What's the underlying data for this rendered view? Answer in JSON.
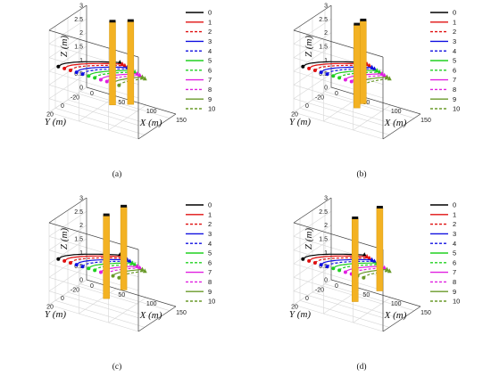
{
  "panel_labels": [
    "(a)",
    "(b)",
    "(c)",
    "(d)"
  ],
  "axis_labels": {
    "x": "X (m)",
    "y": "Y (m)",
    "z": "Z (m)"
  },
  "chart_data": [
    {
      "id": "a",
      "type": "line",
      "caption": "(a)",
      "xlabel": "X (m)",
      "ylabel": "Y (m)",
      "zlabel": "Z (m)",
      "xlim": [
        0,
        150
      ],
      "ylim": [
        -30,
        30
      ],
      "zlim": [
        0,
        3
      ],
      "xticks": [
        "0",
        "50",
        "100",
        "150"
      ],
      "yticks": [
        "-20",
        "0",
        "20"
      ],
      "zticks": [
        "0",
        "0.5",
        "1",
        "1.5",
        "2",
        "2.5",
        "3"
      ],
      "grid": true,
      "legend_position": "right",
      "series": [
        {
          "name": "0",
          "color": "#000000",
          "dash": "solid"
        },
        {
          "name": "1",
          "color": "#e01010",
          "dash": "solid"
        },
        {
          "name": "2",
          "color": "#e01010",
          "dash": "dashed"
        },
        {
          "name": "3",
          "color": "#1010e0",
          "dash": "solid"
        },
        {
          "name": "4",
          "color": "#1010e0",
          "dash": "dashed"
        },
        {
          "name": "5",
          "color": "#20d020",
          "dash": "solid"
        },
        {
          "name": "6",
          "color": "#20d020",
          "dash": "dashed"
        },
        {
          "name": "7",
          "color": "#e020e0",
          "dash": "solid"
        },
        {
          "name": "8",
          "color": "#e020e0",
          "dash": "dashed"
        },
        {
          "name": "9",
          "color": "#6a9a2a",
          "dash": "solid"
        },
        {
          "name": "10",
          "color": "#6a9a2a",
          "dash": "dashed"
        }
      ],
      "obstacles": [
        {
          "x": 75,
          "y": 0
        },
        {
          "x": 95,
          "y": -10
        }
      ]
    },
    {
      "id": "b",
      "type": "line",
      "caption": "(b)",
      "xlabel": "X (m)",
      "ylabel": "Y (m)",
      "zlabel": "Z (m)",
      "xlim": [
        0,
        150
      ],
      "ylim": [
        -30,
        30
      ],
      "zlim": [
        0,
        3
      ],
      "xticks": [
        "0",
        "50",
        "100",
        "150"
      ],
      "yticks": [
        "-20",
        "0",
        "20"
      ],
      "zticks": [
        "0",
        "0.5",
        "1",
        "1.5",
        "2",
        "2.5",
        "3"
      ],
      "grid": true,
      "legend_position": "right",
      "series": [
        {
          "name": "0",
          "color": "#000000",
          "dash": "solid"
        },
        {
          "name": "1",
          "color": "#e01010",
          "dash": "solid"
        },
        {
          "name": "2",
          "color": "#e01010",
          "dash": "dashed"
        },
        {
          "name": "3",
          "color": "#1010e0",
          "dash": "solid"
        },
        {
          "name": "4",
          "color": "#1010e0",
          "dash": "dashed"
        },
        {
          "name": "5",
          "color": "#20d020",
          "dash": "solid"
        },
        {
          "name": "6",
          "color": "#20d020",
          "dash": "dashed"
        },
        {
          "name": "7",
          "color": "#e020e0",
          "dash": "solid"
        },
        {
          "name": "8",
          "color": "#e020e0",
          "dash": "dashed"
        },
        {
          "name": "9",
          "color": "#6a9a2a",
          "dash": "solid"
        },
        {
          "name": "10",
          "color": "#6a9a2a",
          "dash": "dashed"
        }
      ],
      "obstacles": [
        {
          "x": 80,
          "y": 5
        },
        {
          "x": 80,
          "y": -5
        }
      ]
    },
    {
      "id": "c",
      "type": "line",
      "caption": "(c)",
      "xlabel": "X (m)",
      "ylabel": "Y (m)",
      "zlabel": "Z (m)",
      "xlim": [
        0,
        150
      ],
      "ylim": [
        -30,
        30
      ],
      "zlim": [
        0,
        3
      ],
      "xticks": [
        "0",
        "50",
        "100",
        "150"
      ],
      "yticks": [
        "-20",
        "0",
        "20"
      ],
      "zticks": [
        "0",
        "0.5",
        "1",
        "1.5",
        "2",
        "2.5",
        "3"
      ],
      "grid": true,
      "legend_position": "right",
      "series": [
        {
          "name": "0",
          "color": "#000000",
          "dash": "solid"
        },
        {
          "name": "1",
          "color": "#e01010",
          "dash": "solid"
        },
        {
          "name": "2",
          "color": "#e01010",
          "dash": "dashed"
        },
        {
          "name": "3",
          "color": "#1010e0",
          "dash": "solid"
        },
        {
          "name": "4",
          "color": "#1010e0",
          "dash": "dashed"
        },
        {
          "name": "5",
          "color": "#20d020",
          "dash": "solid"
        },
        {
          "name": "6",
          "color": "#20d020",
          "dash": "dashed"
        },
        {
          "name": "7",
          "color": "#e020e0",
          "dash": "solid"
        },
        {
          "name": "8",
          "color": "#e020e0",
          "dash": "dashed"
        },
        {
          "name": "9",
          "color": "#6a9a2a",
          "dash": "solid"
        },
        {
          "name": "10",
          "color": "#6a9a2a",
          "dash": "dashed"
        }
      ],
      "obstacles": [
        {
          "x": 70,
          "y": 5
        },
        {
          "x": 75,
          "y": -18
        }
      ]
    },
    {
      "id": "d",
      "type": "line",
      "caption": "(d)",
      "xlabel": "X (m)",
      "ylabel": "Y (m)",
      "zlabel": "Z (m)",
      "xlim": [
        0,
        150
      ],
      "ylim": [
        -30,
        30
      ],
      "zlim": [
        0,
        3
      ],
      "xticks": [
        "0",
        "50",
        "100",
        "150"
      ],
      "yticks": [
        "-20",
        "0",
        "20"
      ],
      "zticks": [
        "0",
        "0.5",
        "1",
        "1.5",
        "2",
        "2.5",
        "3"
      ],
      "grid": true,
      "legend_position": "right",
      "series": [
        {
          "name": "0",
          "color": "#000000",
          "dash": "solid"
        },
        {
          "name": "1",
          "color": "#e01010",
          "dash": "solid"
        },
        {
          "name": "2",
          "color": "#e01010",
          "dash": "dashed"
        },
        {
          "name": "3",
          "color": "#1010e0",
          "dash": "solid"
        },
        {
          "name": "4",
          "color": "#1010e0",
          "dash": "dashed"
        },
        {
          "name": "5",
          "color": "#20d020",
          "dash": "solid"
        },
        {
          "name": "6",
          "color": "#20d020",
          "dash": "dashed"
        },
        {
          "name": "7",
          "color": "#e020e0",
          "dash": "solid"
        },
        {
          "name": "8",
          "color": "#e020e0",
          "dash": "dashed"
        },
        {
          "name": "9",
          "color": "#6a9a2a",
          "dash": "solid"
        },
        {
          "name": "10",
          "color": "#6a9a2a",
          "dash": "dashed"
        }
      ],
      "obstacles": [
        {
          "x": 80,
          "y": 8
        },
        {
          "x": 90,
          "y": -22
        }
      ]
    }
  ]
}
